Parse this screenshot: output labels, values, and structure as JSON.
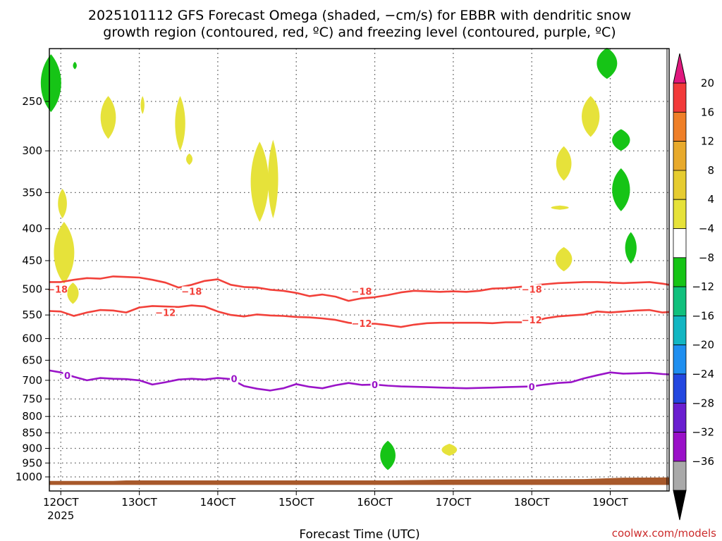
{
  "chart_data": {
    "type": "heatmap",
    "title_lines": [
      "2025101112 GFS Forecast Omega (shaded, −cm/s) for EBBR with dendritic snow",
      "growth region (contoured, red, ºC) and freezing level (contoured, purple, ºC)"
    ],
    "xlabel": "Forecast Time (UTC)",
    "ylabel": "",
    "credit": "coolwx.com/models",
    "x_range_hours": [
      -3.5,
      186
    ],
    "x_ticks": [
      {
        "hour": 0,
        "label": "12OCT",
        "sub": "2025"
      },
      {
        "hour": 24,
        "label": "13OCT",
        "sub": ""
      },
      {
        "hour": 48,
        "label": "14OCT",
        "sub": ""
      },
      {
        "hour": 72,
        "label": "15OCT",
        "sub": ""
      },
      {
        "hour": 96,
        "label": "16OCT",
        "sub": ""
      },
      {
        "hour": 120,
        "label": "17OCT",
        "sub": ""
      },
      {
        "hour": 144,
        "label": "18OCT",
        "sub": ""
      },
      {
        "hour": 168,
        "label": "19OCT",
        "sub": ""
      }
    ],
    "y_range_hpa": [
      1030,
      200
    ],
    "y_ticks": [
      {
        "p": 250,
        "label": "250"
      },
      {
        "p": 300,
        "label": "300"
      },
      {
        "p": 350,
        "label": "350"
      },
      {
        "p": 400,
        "label": "400"
      },
      {
        "p": 450,
        "label": "450"
      },
      {
        "p": 500,
        "label": "500"
      },
      {
        "p": 550,
        "label": "550"
      },
      {
        "p": 600,
        "label": "600"
      },
      {
        "p": 650,
        "label": "650"
      },
      {
        "p": 700,
        "label": "700"
      },
      {
        "p": 750,
        "label": "750"
      },
      {
        "p": 800,
        "label": "800"
      },
      {
        "p": 850,
        "label": "850"
      },
      {
        "p": 900,
        "label": "900"
      },
      {
        "p": 950,
        "label": "950"
      },
      {
        "p": 1000,
        "label": "1000"
      }
    ],
    "colorbar": {
      "levels": [
        "20",
        "16",
        "12",
        "8",
        "4",
        "−4",
        "−8",
        "−12",
        "−16",
        "−20",
        "−24",
        "−28",
        "−32",
        "−36"
      ],
      "colors": [
        "#f23a3a",
        "#ef7f28",
        "#e8aa2c",
        "#e6cc30",
        "#e6e23a",
        "#ffffff",
        "#16c416",
        "#11c07d",
        "#13b6c2",
        "#1f8ff0",
        "#2347e0",
        "#6a1ed0",
        "#9a10c8",
        "#a9a9a9"
      ],
      "top_arrow_color": "#e0187e",
      "bottom_arrow_color": "#000000"
    },
    "omega_blobs": [
      {
        "color": "#16c416",
        "h": -3.0,
        "w": 1.6,
        "p0": 210,
        "p1": 260
      },
      {
        "color": "#16c416",
        "h": 4.3,
        "w": 0.3,
        "p0": 216,
        "p1": 222
      },
      {
        "color": "#e6e23a",
        "h": 14.5,
        "w": 1.2,
        "p0": 245,
        "p1": 287
      },
      {
        "color": "#e6e23a",
        "h": 25.0,
        "w": 0.3,
        "p0": 245,
        "p1": 262
      },
      {
        "color": "#e6e23a",
        "h": 36.5,
        "w": 0.8,
        "p0": 245,
        "p1": 300
      },
      {
        "color": "#e6e23a",
        "h": 39.3,
        "w": 0.5,
        "p0": 303,
        "p1": 316
      },
      {
        "color": "#e6e23a",
        "h": 60.8,
        "w": 1.4,
        "p0": 290,
        "p1": 390
      },
      {
        "color": "#e6e23a",
        "h": 0.5,
        "w": 0.7,
        "p0": 345,
        "p1": 385
      },
      {
        "color": "#e6e23a",
        "h": 1.0,
        "w": 1.6,
        "p0": 390,
        "p1": 490
      },
      {
        "color": "#e6e23a",
        "h": 3.7,
        "w": 0.9,
        "p0": 488,
        "p1": 528
      },
      {
        "color": "#e6e23a",
        "h": 64.9,
        "w": 0.8,
        "p0": 288,
        "p1": 385
      },
      {
        "color": "#e6e23a",
        "h": 153.8,
        "w": 1.2,
        "p0": 295,
        "p1": 335
      },
      {
        "color": "#e6e23a",
        "h": 152.6,
        "w": 1.4,
        "p0": 368,
        "p1": 372
      },
      {
        "color": "#e6e23a",
        "h": 153.8,
        "w": 1.3,
        "p0": 428,
        "p1": 468
      },
      {
        "color": "#e6e23a",
        "h": 162.0,
        "w": 1.4,
        "p0": 245,
        "p1": 285
      },
      {
        "color": "#16c416",
        "h": 167.0,
        "w": 1.6,
        "p0": 205,
        "p1": 230
      },
      {
        "color": "#16c416",
        "h": 171.3,
        "w": 1.4,
        "p0": 277,
        "p1": 300
      },
      {
        "color": "#16c416",
        "h": 171.3,
        "w": 1.4,
        "p0": 320,
        "p1": 375
      },
      {
        "color": "#16c416",
        "h": 174.3,
        "w": 0.9,
        "p0": 405,
        "p1": 455
      },
      {
        "color": "#16c416",
        "h": 100.0,
        "w": 1.2,
        "p0": 875,
        "p1": 975
      },
      {
        "color": "#e6e23a",
        "h": 118.8,
        "w": 1.2,
        "p0": 885,
        "p1": 925
      }
    ],
    "contours": [
      {
        "name": "dgz-minus18",
        "value": -18,
        "color": "#f2413a",
        "label": "−18",
        "points": [
          [
            -3.5,
            487
          ],
          [
            0,
            487
          ],
          [
            4,
            483
          ],
          [
            8,
            480
          ],
          [
            12,
            481
          ],
          [
            16,
            477
          ],
          [
            20,
            478
          ],
          [
            24,
            479
          ],
          [
            28,
            483
          ],
          [
            32,
            488
          ],
          [
            36,
            497
          ],
          [
            40,
            492
          ],
          [
            44,
            485
          ],
          [
            48,
            482
          ],
          [
            52,
            492
          ],
          [
            56,
            496
          ],
          [
            60,
            497
          ],
          [
            64,
            501
          ],
          [
            68,
            503
          ],
          [
            72,
            507
          ],
          [
            76,
            513
          ],
          [
            80,
            510
          ],
          [
            84,
            514
          ],
          [
            88,
            522
          ],
          [
            92,
            517
          ],
          [
            96,
            515
          ],
          [
            100,
            511
          ],
          [
            104,
            506
          ],
          [
            108,
            503
          ],
          [
            112,
            504
          ],
          [
            116,
            505
          ],
          [
            120,
            504
          ],
          [
            124,
            505
          ],
          [
            128,
            503
          ],
          [
            132,
            499
          ],
          [
            136,
            498
          ],
          [
            140,
            496
          ],
          [
            144,
            493
          ],
          [
            148,
            491
          ],
          [
            152,
            489
          ],
          [
            156,
            488
          ],
          [
            160,
            487
          ],
          [
            164,
            487
          ],
          [
            168,
            488
          ],
          [
            172,
            489
          ],
          [
            176,
            488
          ],
          [
            180,
            487
          ],
          [
            184,
            490
          ],
          [
            186,
            492
          ]
        ],
        "labels": [
          [
            -1,
            500
          ],
          [
            40,
            504
          ],
          [
            92,
            504
          ],
          [
            144,
            500
          ]
        ]
      },
      {
        "name": "dgz-minus12",
        "value": -12,
        "color": "#f2413a",
        "label": "−12",
        "points": [
          [
            -3.5,
            542
          ],
          [
            0,
            543
          ],
          [
            4,
            552
          ],
          [
            8,
            545
          ],
          [
            12,
            540
          ],
          [
            16,
            541
          ],
          [
            20,
            545
          ],
          [
            24,
            535
          ],
          [
            28,
            532
          ],
          [
            32,
            533
          ],
          [
            36,
            534
          ],
          [
            40,
            531
          ],
          [
            44,
            533
          ],
          [
            48,
            543
          ],
          [
            52,
            550
          ],
          [
            56,
            553
          ],
          [
            60,
            549
          ],
          [
            64,
            551
          ],
          [
            68,
            552
          ],
          [
            72,
            554
          ],
          [
            76,
            555
          ],
          [
            80,
            557
          ],
          [
            84,
            560
          ],
          [
            88,
            566
          ],
          [
            92,
            569
          ],
          [
            96,
            568
          ],
          [
            100,
            571
          ],
          [
            104,
            575
          ],
          [
            108,
            570
          ],
          [
            112,
            567
          ],
          [
            116,
            566
          ],
          [
            120,
            566
          ],
          [
            124,
            566
          ],
          [
            128,
            566
          ],
          [
            132,
            567
          ],
          [
            136,
            565
          ],
          [
            140,
            565
          ],
          [
            144,
            565
          ],
          [
            148,
            557
          ],
          [
            152,
            553
          ],
          [
            156,
            551
          ],
          [
            160,
            549
          ],
          [
            164,
            543
          ],
          [
            168,
            545
          ],
          [
            172,
            543
          ],
          [
            176,
            541
          ],
          [
            180,
            540
          ],
          [
            184,
            545
          ],
          [
            186,
            544
          ]
        ],
        "labels": [
          [
            32,
            545
          ],
          [
            92,
            567
          ],
          [
            144,
            560
          ]
        ]
      },
      {
        "name": "freezing-level",
        "value": 0,
        "color": "#9a14c8",
        "label": "0",
        "points": [
          [
            -3.5,
            675
          ],
          [
            0,
            680
          ],
          [
            4,
            691
          ],
          [
            8,
            700
          ],
          [
            12,
            694
          ],
          [
            16,
            696
          ],
          [
            20,
            697
          ],
          [
            24,
            700
          ],
          [
            28,
            711
          ],
          [
            32,
            705
          ],
          [
            36,
            698
          ],
          [
            40,
            696
          ],
          [
            44,
            698
          ],
          [
            48,
            694
          ],
          [
            52,
            697
          ],
          [
            56,
            715
          ],
          [
            60,
            722
          ],
          [
            64,
            727
          ],
          [
            68,
            721
          ],
          [
            72,
            710
          ],
          [
            76,
            717
          ],
          [
            80,
            721
          ],
          [
            84,
            713
          ],
          [
            88,
            707
          ],
          [
            92,
            712
          ],
          [
            96,
            711
          ],
          [
            100,
            714
          ],
          [
            104,
            716
          ],
          [
            108,
            717
          ],
          [
            112,
            718
          ],
          [
            116,
            719
          ],
          [
            120,
            720
          ],
          [
            124,
            721
          ],
          [
            128,
            720
          ],
          [
            132,
            719
          ],
          [
            136,
            718
          ],
          [
            140,
            717
          ],
          [
            144,
            716
          ],
          [
            148,
            711
          ],
          [
            152,
            707
          ],
          [
            156,
            705
          ],
          [
            160,
            695
          ],
          [
            164,
            687
          ],
          [
            168,
            680
          ],
          [
            172,
            683
          ],
          [
            176,
            682
          ],
          [
            180,
            681
          ],
          [
            184,
            684
          ],
          [
            186,
            685
          ]
        ],
        "labels": [
          [
            2,
            688
          ],
          [
            53,
            696
          ],
          [
            96,
            711
          ],
          [
            144,
            717
          ]
        ]
      }
    ],
    "terrain": {
      "color": "#a8592b",
      "surface": [
        [
          -3.5,
          1015
        ],
        [
          16,
          1015
        ],
        [
          20,
          1013
        ],
        [
          72,
          1013
        ],
        [
          96,
          1013
        ],
        [
          100,
          1013
        ],
        [
          120,
          1010
        ],
        [
          160,
          1008
        ],
        [
          172,
          1003
        ],
        [
          186,
          1002
        ]
      ],
      "bottom_hpa": 1030
    }
  }
}
